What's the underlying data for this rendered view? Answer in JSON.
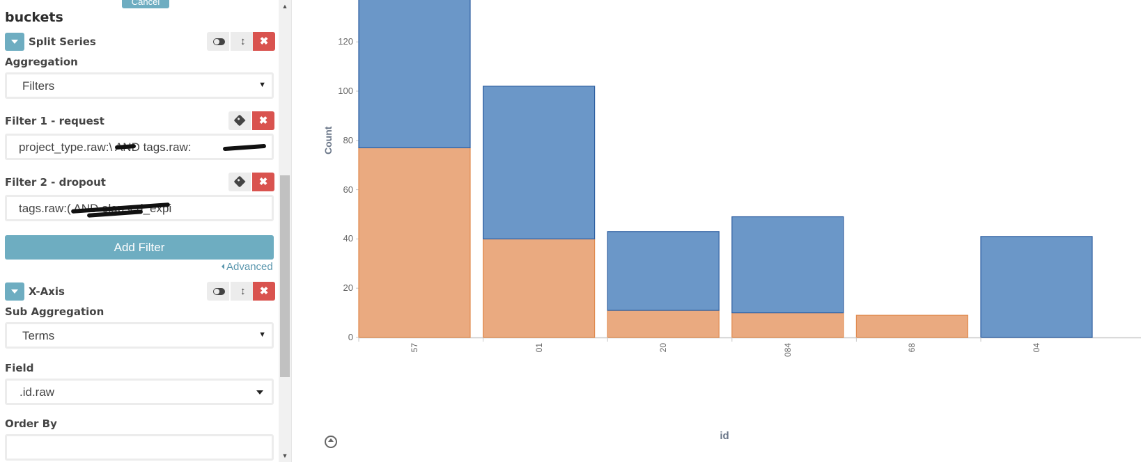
{
  "sidebar": {
    "cancel_label": "Cancel",
    "section_title": "buckets",
    "split_series": {
      "title": "Split Series",
      "aggregation_label": "Aggregation",
      "aggregation_value": "Filters",
      "filters": [
        {
          "label": "Filter 1 - request",
          "value": "project_type.raw:\\     AND tags.raw:"
        },
        {
          "label": "Filter 2 - dropout",
          "value": "tags.raw:(                  AND elapsed_expi"
        }
      ],
      "add_filter_label": "Add Filter",
      "advanced_label": "Advanced"
    },
    "x_axis": {
      "title": "X-Axis",
      "sub_aggregation_label": "Sub Aggregation",
      "sub_aggregation_value": "Terms",
      "field_label": "Field",
      "field_value": "  .id.raw",
      "order_by_label": "Order By"
    }
  },
  "chart_data": {
    "type": "bar",
    "stacked": true,
    "ylabel": "Count",
    "xlabel": "id",
    "ylim": [
      0,
      138
    ],
    "y_ticks": [
      0,
      20,
      40,
      60,
      80,
      100,
      120
    ],
    "categories": [
      "57",
      "01",
      "20",
      "084",
      "68",
      "04"
    ],
    "series": [
      {
        "color": "#eaaa80",
        "values": [
          77,
          40,
          11,
          10,
          9,
          0
        ]
      },
      {
        "color": "#6b97c8",
        "values": [
          61,
          62,
          32,
          39,
          0,
          41
        ]
      }
    ],
    "colors": {
      "series_outline_blue": "#2d5ea0",
      "series_outline_orange": "#e08a4e"
    }
  }
}
